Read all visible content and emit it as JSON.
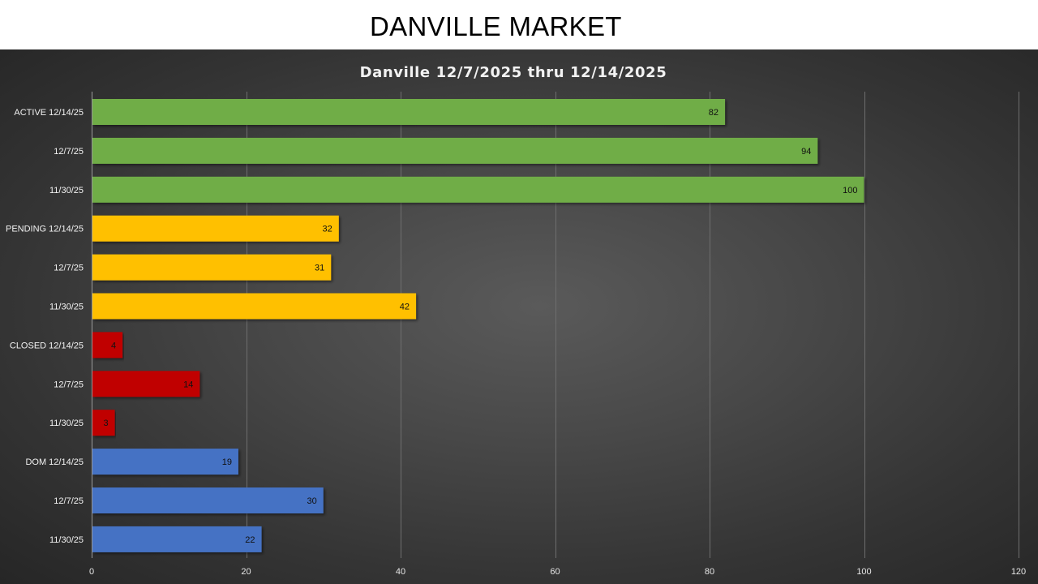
{
  "slide": {
    "title": "DANVILLE MARKET"
  },
  "colors": {
    "active": "#70ad47",
    "pending": "#ffc000",
    "closed": "#c00000",
    "dom": "#4472c4",
    "background": "#404040"
  },
  "chart_data": {
    "type": "bar",
    "orientation": "horizontal",
    "title": "Danville 12/7/2025 thru 12/14/2025",
    "xlim": [
      0,
      120
    ],
    "x_ticks": [
      0,
      20,
      40,
      60,
      80,
      100,
      120
    ],
    "grid": true,
    "legend": "none",
    "categories": [
      "ACTIVE 12/14/25",
      "12/7/25",
      "11/30/25",
      "PENDING 12/14/25",
      "12/7/25",
      "11/30/25",
      "CLOSED 12/14/25",
      "12/7/25",
      "11/30/25",
      "DOM 12/14/25",
      "12/7/25",
      "11/30/25"
    ],
    "values": [
      82,
      94,
      100,
      32,
      31,
      42,
      4,
      14,
      3,
      19,
      30,
      22
    ],
    "groups": [
      "active",
      "active",
      "active",
      "pending",
      "pending",
      "pending",
      "closed",
      "closed",
      "closed",
      "dom",
      "dom",
      "dom"
    ]
  }
}
